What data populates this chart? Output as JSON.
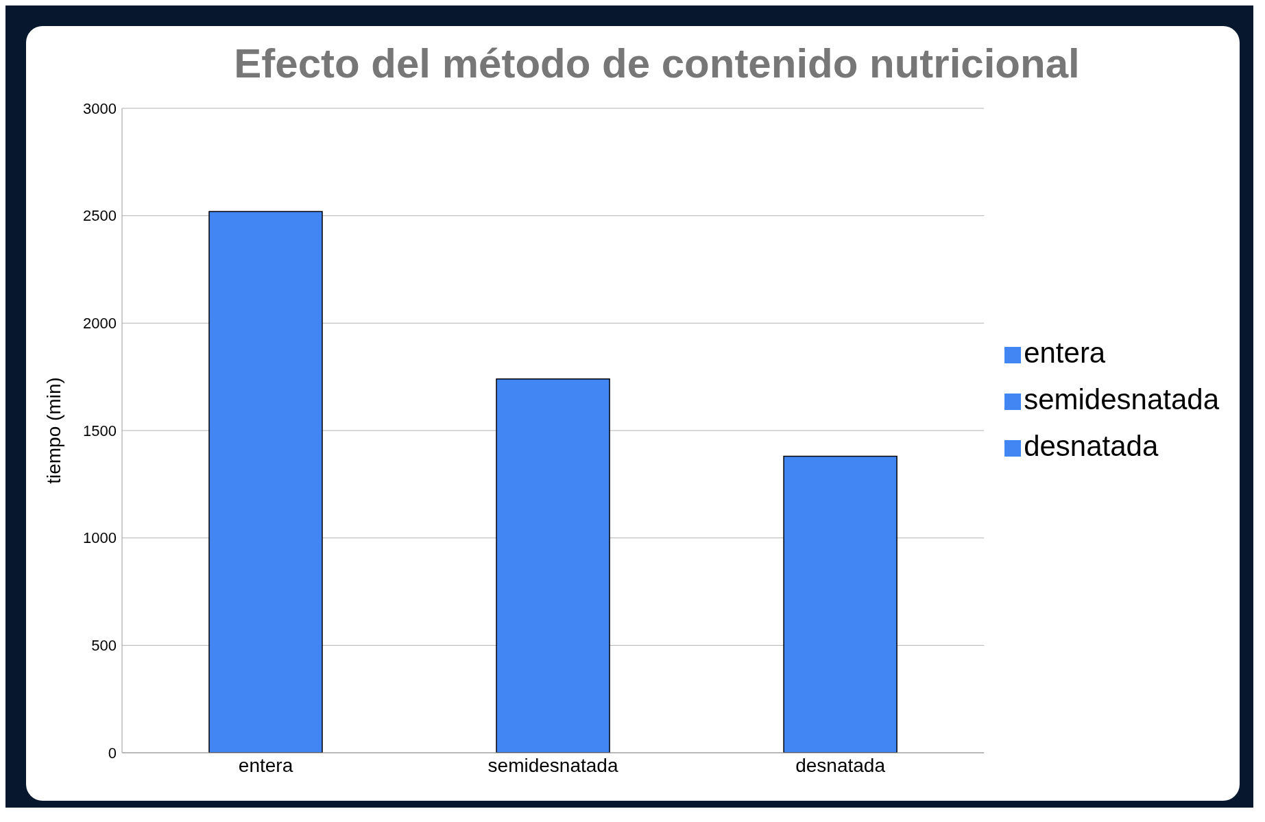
{
  "chart_data": {
    "type": "bar",
    "title": "Efecto del método de contenido nutricional",
    "ylabel": "tiempo (min)",
    "categories": [
      "entera",
      "semidesnatada",
      "desnatada"
    ],
    "series": [
      {
        "name": "entera",
        "color": "#4286f4",
        "values": [
          2520,
          null,
          null
        ]
      },
      {
        "name": "semidesnatada",
        "color": "#4286f4",
        "values": [
          null,
          1740,
          null
        ]
      },
      {
        "name": "desnatada",
        "color": "#4286f4",
        "values": [
          null,
          null,
          1380
        ]
      }
    ],
    "stacked": true,
    "ylim": [
      0,
      3000
    ],
    "yticks": [
      0,
      500,
      1000,
      1500,
      2000,
      2500,
      3000
    ],
    "grid": "y",
    "legend": "right"
  }
}
